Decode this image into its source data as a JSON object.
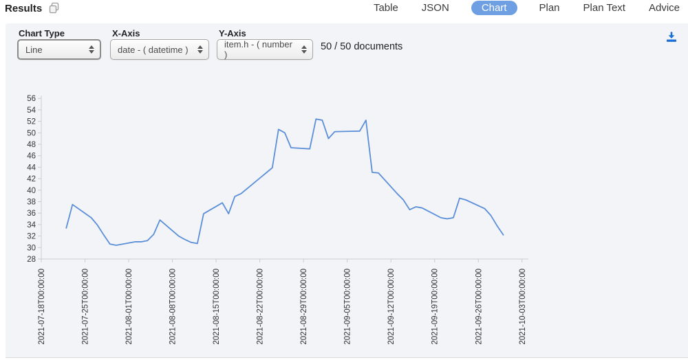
{
  "header": {
    "title": "Results"
  },
  "tabs": [
    {
      "label": "Table",
      "active": false
    },
    {
      "label": "JSON",
      "active": false
    },
    {
      "label": "Chart",
      "active": true
    },
    {
      "label": "Plan",
      "active": false
    },
    {
      "label": "Plan Text",
      "active": false
    },
    {
      "label": "Advice",
      "active": false
    }
  ],
  "controls": {
    "chart_type": {
      "label": "Chart Type",
      "value": "Line"
    },
    "x_axis": {
      "label": "X-Axis",
      "value": "date - ( datetime )"
    },
    "y_axis": {
      "label": "Y-Axis",
      "value": "item.h - ( number )"
    },
    "doc_count": "50 / 50 documents"
  },
  "icons": {
    "copy": "copy-icon",
    "download": "download-icon"
  },
  "colors": {
    "tab_active_bg": "#6d9fe2",
    "download_icon": "#1c6fd6",
    "panel_bg": "#f2f4f8",
    "axis": "#cccccc",
    "line": "#5b8ed8"
  },
  "chart_data": {
    "type": "line",
    "title": "",
    "xlabel": "",
    "ylabel": "",
    "grid": false,
    "legend": "none",
    "ylim": [
      28,
      56
    ],
    "y_ticks": [
      28,
      30,
      32,
      34,
      36,
      38,
      40,
      42,
      44,
      46,
      48,
      50,
      52,
      54,
      56
    ],
    "x_tick_labels": [
      "2021-07-18T00:00:00",
      "2021-07-25T00:00:00",
      "2021-08-01T00:00:00",
      "2021-08-08T00:00:00",
      "2021-08-15T00:00:00",
      "2021-08-22T00:00:00",
      "2021-08-29T00:00:00",
      "2021-09-05T00:00:00",
      "2021-09-12T00:00:00",
      "2021-09-19T00:00:00",
      "2021-09-26T00:00:00",
      "2021-10-03T00:00:00"
    ],
    "x": [
      "2021-07-22",
      "2021-07-23",
      "2021-07-26",
      "2021-07-27",
      "2021-07-28",
      "2021-07-29",
      "2021-07-30",
      "2021-08-02",
      "2021-08-03",
      "2021-08-04",
      "2021-08-05",
      "2021-08-06",
      "2021-08-09",
      "2021-08-10",
      "2021-08-11",
      "2021-08-12",
      "2021-08-13",
      "2021-08-16",
      "2021-08-17",
      "2021-08-18",
      "2021-08-19",
      "2021-08-20",
      "2021-08-23",
      "2021-08-24",
      "2021-08-25",
      "2021-08-26",
      "2021-08-27",
      "2021-08-30",
      "2021-08-31",
      "2021-09-01",
      "2021-09-02",
      "2021-09-03",
      "2021-09-07",
      "2021-09-08",
      "2021-09-09",
      "2021-09-10",
      "2021-09-13",
      "2021-09-14",
      "2021-09-15",
      "2021-09-16",
      "2021-09-17",
      "2021-09-20",
      "2021-09-21",
      "2021-09-22",
      "2021-09-23",
      "2021-09-24",
      "2021-09-27",
      "2021-09-28",
      "2021-09-29",
      "2021-09-30"
    ],
    "values": [
      33.4,
      37.5,
      35.2,
      33.9,
      32.2,
      30.6,
      30.4,
      31.0,
      31.0,
      31.2,
      32.3,
      34.8,
      32.0,
      31.4,
      30.9,
      30.7,
      35.9,
      37.8,
      35.9,
      38.9,
      39.4,
      40.3,
      43.0,
      43.9,
      50.6,
      50.0,
      47.4,
      47.2,
      52.4,
      52.2,
      49.0,
      50.2,
      50.3,
      52.2,
      43.1,
      43.0,
      39.4,
      38.3,
      36.6,
      37.1,
      36.9,
      35.2,
      35.0,
      35.2,
      38.6,
      38.3,
      36.8,
      35.6,
      33.8,
      32.2
    ],
    "line_color": "#5b8ed8"
  }
}
